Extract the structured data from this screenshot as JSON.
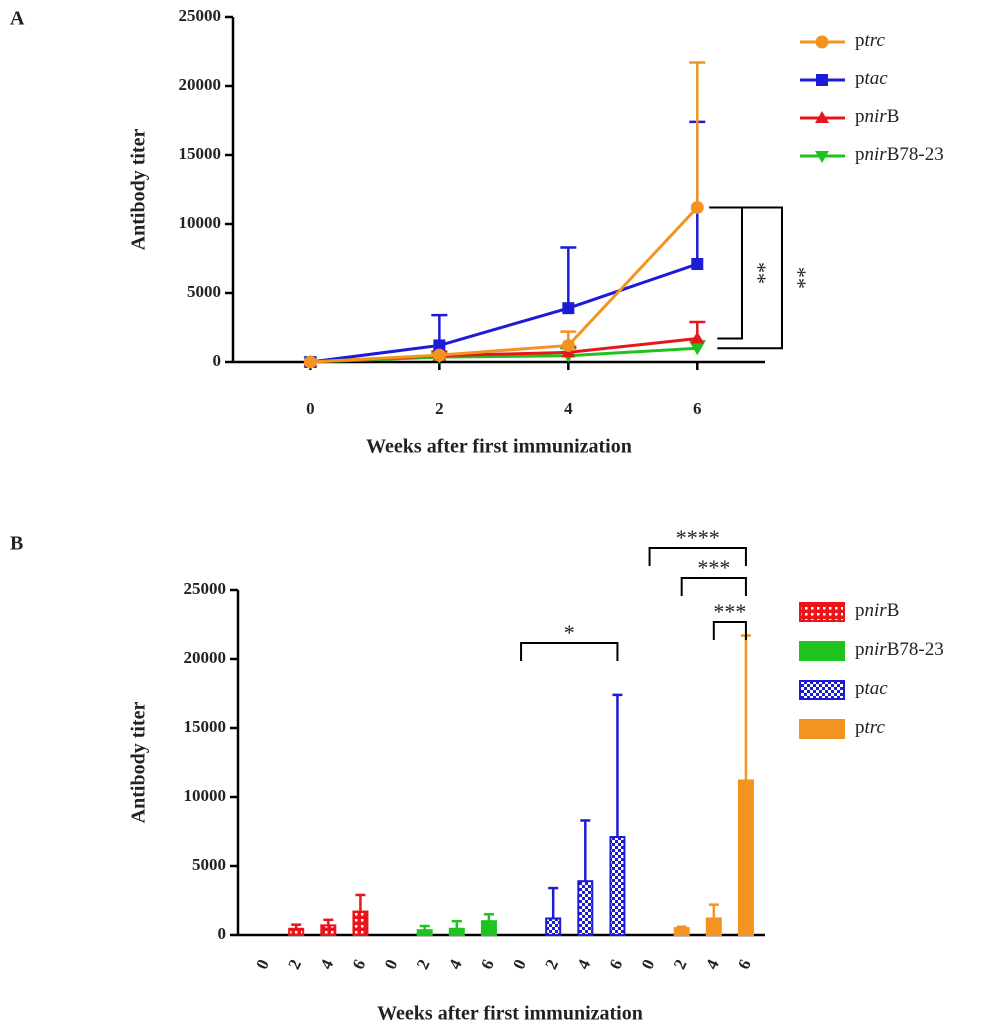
{
  "chart_data": [
    {
      "type": "line",
      "panel": "A",
      "ylabel": "Antibody titer",
      "xlabel": "Weeks after first immunization",
      "x": [
        0,
        2,
        4,
        6
      ],
      "xlim": [
        -1.2,
        7.05
      ],
      "xticks": [
        0,
        2,
        4,
        6
      ],
      "ylim": [
        0,
        25000
      ],
      "yticks": [
        0,
        5000,
        10000,
        15000,
        20000,
        25000
      ],
      "series": [
        {
          "name": "ptrc",
          "color": "#f39422",
          "marker": "circle",
          "values": [
            0,
            500,
            1200,
            11200
          ],
          "errors": [
            0,
            100,
            1000,
            10500
          ]
        },
        {
          "name": "ptac",
          "color": "#1c1cd8",
          "marker": "square",
          "values": [
            0,
            1200,
            3900,
            7100
          ],
          "errors": [
            0,
            2200,
            4400,
            10300
          ]
        },
        {
          "name": "pnirB",
          "color": "#e8161b",
          "marker": "triangle-up",
          "values": [
            0,
            450,
            700,
            1700
          ],
          "errors": [
            0,
            300,
            400,
            1200
          ]
        },
        {
          "name": "pnirB78-23",
          "color": "#1ec31e",
          "marker": "triangle-down",
          "values": [
            0,
            350,
            450,
            1000
          ],
          "errors": [
            0,
            300,
            550,
            500
          ]
        }
      ],
      "annotations": [
        "**",
        "**"
      ]
    },
    {
      "type": "bar",
      "panel": "B",
      "ylabel": "Antibody titer",
      "xlabel": "Weeks after first immunization",
      "categories": [
        "0",
        "2",
        "4",
        "6",
        "0",
        "2",
        "4",
        "6",
        "0",
        "2",
        "4",
        "6",
        "0",
        "2",
        "4",
        "6"
      ],
      "ylim": [
        0,
        25000
      ],
      "yticks": [
        0,
        5000,
        10000,
        15000,
        20000,
        25000
      ],
      "series": [
        {
          "name": "pnirB",
          "color": "#e8161b",
          "values": [
            0,
            450,
            700,
            1700,
            null,
            null,
            null,
            null,
            null,
            null,
            null,
            null,
            null,
            null,
            null,
            null
          ],
          "errors": [
            0,
            300,
            400,
            1200,
            null,
            null,
            null,
            null,
            null,
            null,
            null,
            null,
            null,
            null,
            null,
            null
          ]
        },
        {
          "name": "pnirB78-23",
          "color": "#1ec31e",
          "values": [
            null,
            null,
            null,
            null,
            0,
            350,
            450,
            1000,
            null,
            null,
            null,
            null,
            null,
            null,
            null,
            null
          ],
          "errors": [
            null,
            null,
            null,
            null,
            0,
            300,
            550,
            500,
            null,
            null,
            null,
            null,
            null,
            null,
            null,
            null
          ]
        },
        {
          "name": "ptac",
          "color": "#1c1cd8",
          "values": [
            null,
            null,
            null,
            null,
            null,
            null,
            null,
            null,
            0,
            1200,
            3900,
            7100,
            null,
            null,
            null,
            null
          ],
          "errors": [
            null,
            null,
            null,
            null,
            null,
            null,
            null,
            null,
            0,
            2200,
            4400,
            10300,
            null,
            null,
            null,
            null
          ]
        },
        {
          "name": "ptrc",
          "color": "#f39422",
          "values": [
            null,
            null,
            null,
            null,
            null,
            null,
            null,
            null,
            null,
            null,
            null,
            null,
            0,
            500,
            1200,
            11200
          ],
          "errors": [
            null,
            null,
            null,
            null,
            null,
            null,
            null,
            null,
            null,
            null,
            null,
            null,
            0,
            100,
            1000,
            10500
          ]
        }
      ],
      "annotations": [
        "*",
        "****",
        "***",
        "***"
      ]
    }
  ]
}
